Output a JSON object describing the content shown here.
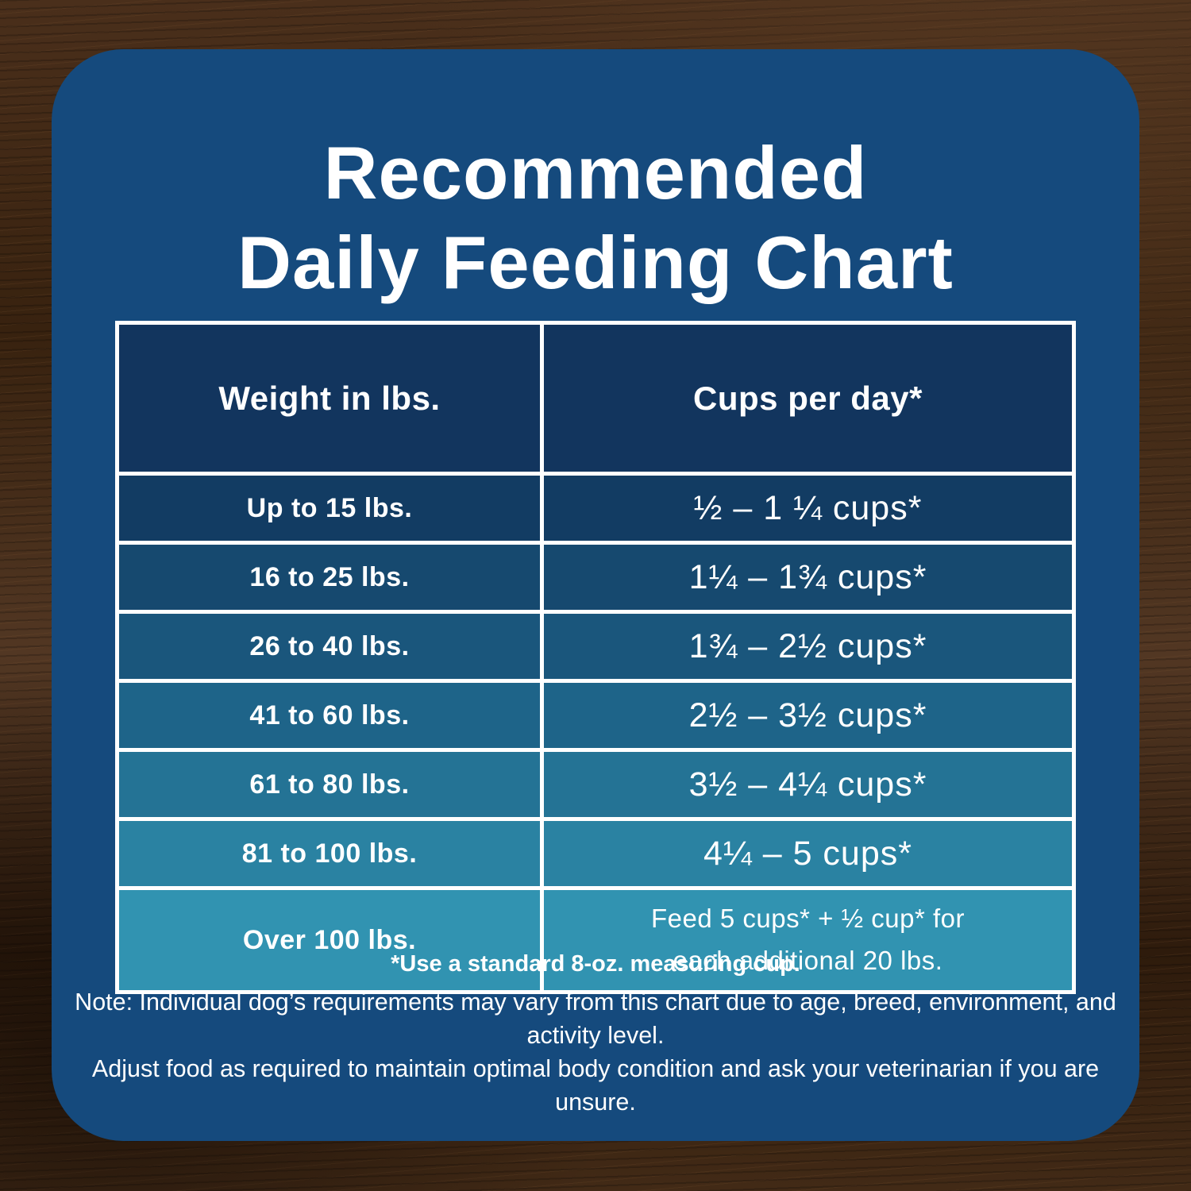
{
  "title": {
    "line1": "Recommended",
    "line2": "Daily Feeding Chart"
  },
  "table": {
    "headers": [
      "Weight in lbs.",
      "Cups per day*"
    ],
    "header_color": "#12355e",
    "row_colors": [
      "#123c63",
      "#16496f",
      "#1a567c",
      "#1e6489",
      "#247395",
      "#2a82a2",
      "#3193b1"
    ],
    "rows": [
      {
        "weight": "Up to 15 lbs.",
        "cups": "½ – 1 ¼ cups*"
      },
      {
        "weight": "16 to 25 lbs.",
        "cups": "1¼ – 1¾ cups*"
      },
      {
        "weight": "26 to 40 lbs.",
        "cups": "1¾ – 2½ cups*"
      },
      {
        "weight": "41 to 60 lbs.",
        "cups": "2½ – 3½ cups*"
      },
      {
        "weight": "61 to 80 lbs.",
        "cups": "3½ – 4¼ cups*"
      },
      {
        "weight": "81 to 100 lbs.",
        "cups": "4¼ – 5 cups*"
      },
      {
        "weight": "Over 100 lbs.",
        "cups": "Feed 5 cups* + ½ cup* for\neach additional 20 lbs."
      }
    ]
  },
  "footnotes": {
    "cup_note": "*Use a standard 8-oz. measuring cup.",
    "note_line1": "Note: Individual dog’s requirements may vary from this chart due to age, breed, environment, and activity level.",
    "note_line2": "Adjust food as required to maintain optimal body condition and ask your veterinarian if you are unsure."
  },
  "colors": {
    "card_bg": "#154a7d",
    "table_border": "#ffffff",
    "text": "#ffffff"
  },
  "chart_data": {
    "type": "table",
    "title": "Recommended Daily Feeding Chart",
    "columns": [
      "Weight in lbs.",
      "Cups per day*"
    ],
    "rows": [
      [
        "Up to 15 lbs.",
        "½ – 1 ¼ cups*"
      ],
      [
        "16 to 25 lbs.",
        "1¼ – 1¾ cups*"
      ],
      [
        "26 to 40 lbs.",
        "1¾ – 2½ cups*"
      ],
      [
        "41 to 60 lbs.",
        "2½ – 3½ cups*"
      ],
      [
        "61 to 80 lbs.",
        "3½ – 4¼ cups*"
      ],
      [
        "81 to 100 lbs.",
        "4¼ – 5 cups*"
      ],
      [
        "Over 100 lbs.",
        "Feed 5 cups* + ½ cup* for each additional 20 lbs."
      ]
    ],
    "footnotes": [
      "*Use a standard 8-oz. measuring cup.",
      "Note: Individual dog’s requirements may vary from this chart due to age, breed, environment, and activity level.",
      "Adjust food as required to maintain optimal body condition and ask your veterinarian if you are unsure."
    ],
    "layout_hints": {
      "row_color_gradient": [
        "#123c63",
        "#3193b1"
      ],
      "grid": "white 5px borders",
      "background_card": "#154a7d on dark wood"
    }
  }
}
